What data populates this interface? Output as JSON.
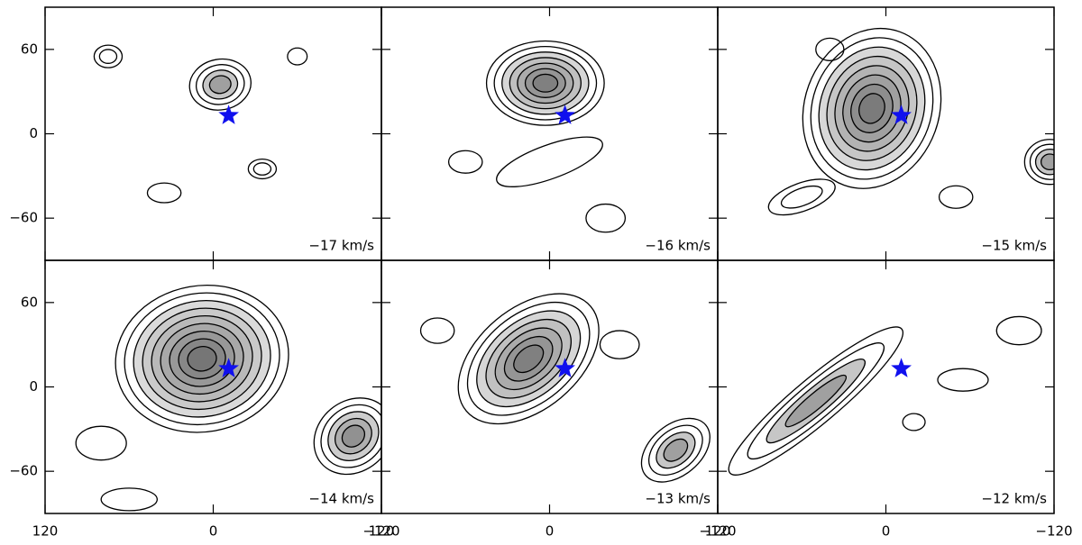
{
  "chart_data": {
    "type": "contour",
    "xlim": [
      120,
      -120
    ],
    "ylim": [
      -90,
      90
    ],
    "xticks": [
      120,
      0,
      {
        "value": -120,
        "label": "−120"
      }
    ],
    "yticks": [
      60,
      0,
      {
        "value": -60,
        "label": "−60"
      }
    ],
    "star": {
      "x": -11,
      "y": 13,
      "color": "#1010ee"
    },
    "panels": [
      {
        "label": "−17 km/s"
      },
      {
        "label": "−16 km/s"
      },
      {
        "label": "−15 km/s"
      },
      {
        "label": "−14 km/s"
      },
      {
        "label": "−13 km/s"
      },
      {
        "label": "−12 km/s"
      }
    ]
  }
}
